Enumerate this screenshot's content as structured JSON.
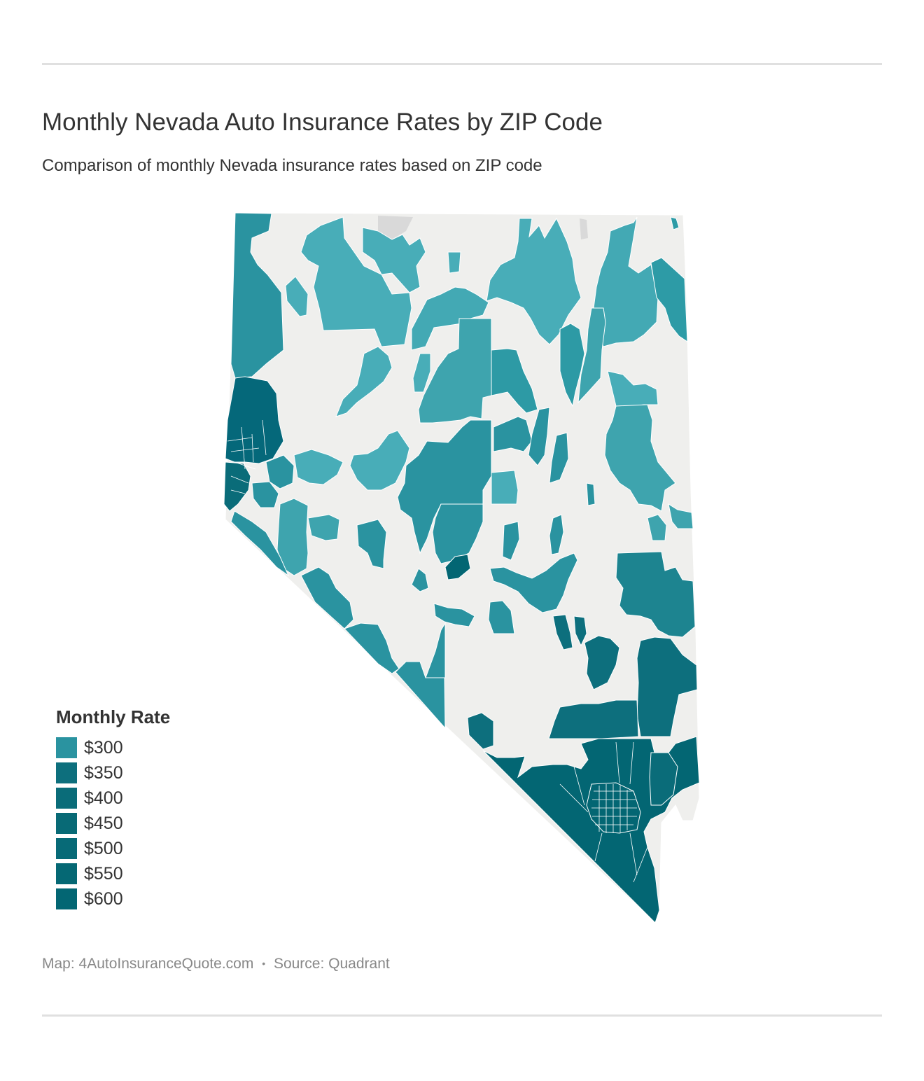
{
  "header": {
    "title": "Monthly Nevada Auto Insurance Rates by ZIP Code",
    "subtitle": "Comparison of monthly Nevada insurance rates based on ZIP code"
  },
  "map": {
    "region": "Nevada",
    "colors": {
      "no_data": "#efefed",
      "no_data_dark": "#d9d9d9",
      "border": "#ffffff",
      "tier_300": "#2a97a0",
      "tier_350": "#0f7a86",
      "tier_400": "#0a6f7c",
      "tier_600": "#036673"
    }
  },
  "legend": {
    "title": "Monthly Rate",
    "items": [
      {
        "label": "$300",
        "color": "#2a93a0"
      },
      {
        "label": "$350",
        "color": "#0d6f7d"
      },
      {
        "label": "$400",
        "color": "#0a6c79"
      },
      {
        "label": "$450",
        "color": "#086a76"
      },
      {
        "label": "$500",
        "color": "#076a77"
      },
      {
        "label": "$550",
        "color": "#056874"
      },
      {
        "label": "$600",
        "color": "#036673"
      }
    ]
  },
  "footer": {
    "map_credit": "Map: 4AutoInsuranceQuote.com",
    "separator": "•",
    "source": "Source: Quadrant"
  }
}
